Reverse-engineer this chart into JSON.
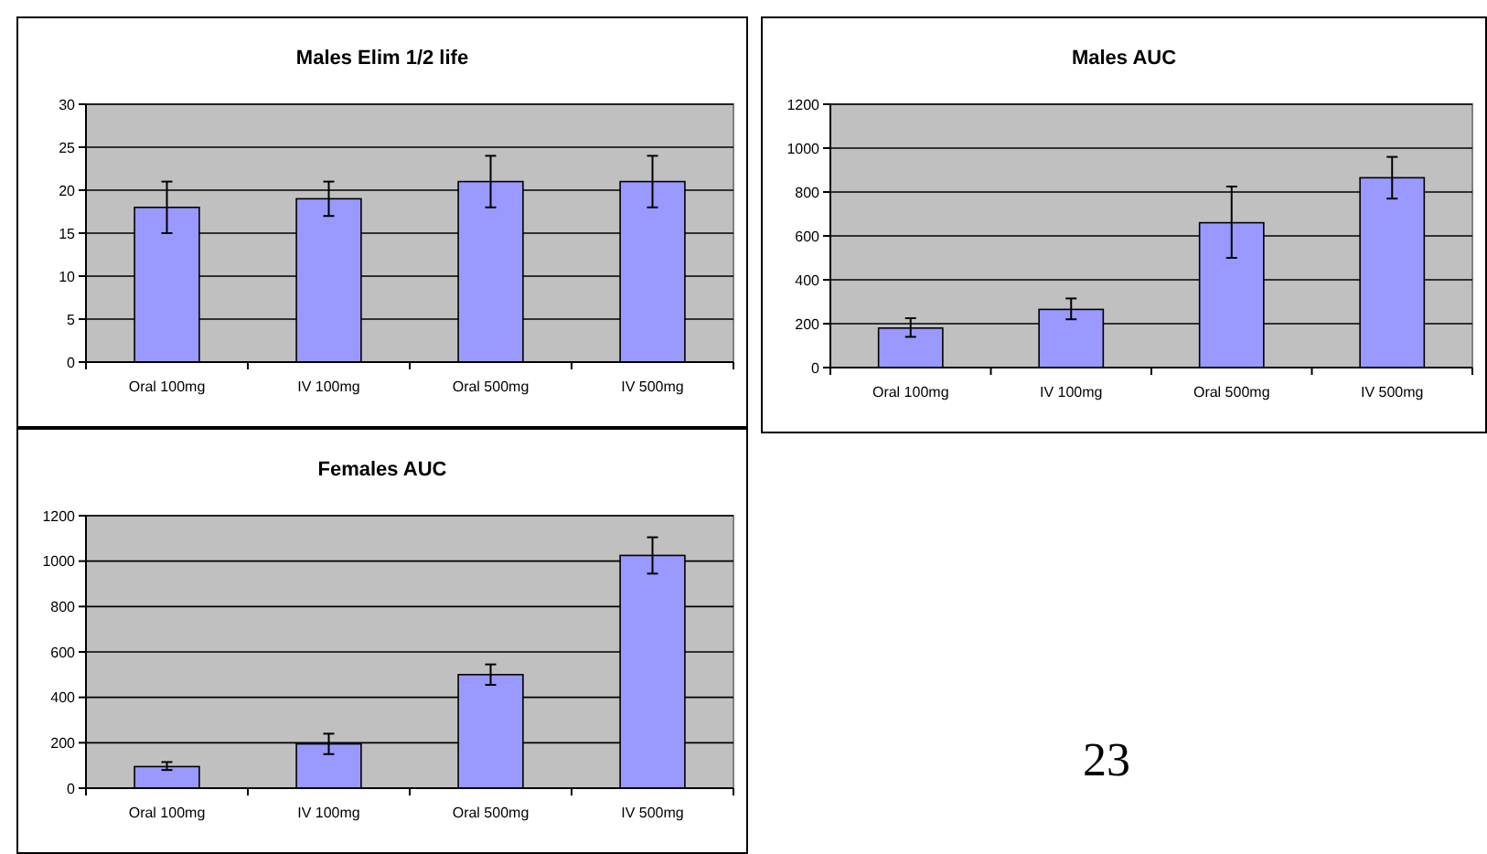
{
  "chart_data": [
    {
      "type": "bar",
      "title": "Males Elim 1/2 life",
      "categories": [
        "Oral 100mg",
        "IV 100mg",
        "Oral 500mg",
        "IV 500mg"
      ],
      "values": [
        18,
        19,
        21,
        21
      ],
      "errors": [
        [
          15,
          21
        ],
        [
          17,
          21
        ],
        [
          18,
          24
        ],
        [
          18,
          24
        ]
      ],
      "color": "#9999ff",
      "ylim": [
        0,
        30
      ],
      "yticks": [
        0,
        5,
        10,
        15,
        20,
        25,
        30
      ],
      "grid": "y"
    },
    {
      "type": "bar",
      "title": "Males AUC",
      "categories": [
        "Oral 100mg",
        "IV 100mg",
        "Oral 500mg",
        "IV 500mg"
      ],
      "values": [
        180,
        265,
        660,
        865
      ],
      "errors": [
        [
          140,
          225
        ],
        [
          220,
          315
        ],
        [
          500,
          825
        ],
        [
          770,
          960
        ]
      ],
      "color": "#9999ff",
      "ylim": [
        0,
        1200
      ],
      "yticks": [
        0,
        200,
        400,
        600,
        800,
        1000,
        1200
      ],
      "grid": "y"
    },
    {
      "type": "bar",
      "title": "Females AUC",
      "categories": [
        "Oral 100mg",
        "IV 100mg",
        "Oral 500mg",
        "IV 500mg"
      ],
      "values": [
        95,
        195,
        500,
        1025
      ],
      "errors": [
        [
          80,
          115
        ],
        [
          150,
          240
        ],
        [
          455,
          545
        ],
        [
          945,
          1105
        ]
      ],
      "color": "#9999ff",
      "ylim": [
        0,
        1200
      ],
      "yticks": [
        0,
        200,
        400,
        600,
        800,
        1000,
        1200
      ],
      "grid": "y"
    },
    {
      "type": "other",
      "annotations": [
        "23"
      ]
    }
  ]
}
